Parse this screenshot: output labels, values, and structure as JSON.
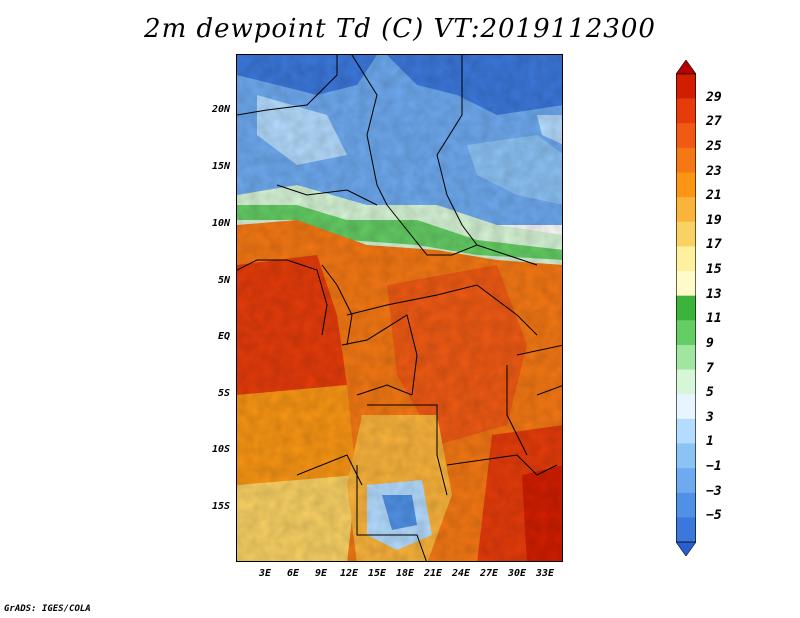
{
  "title": "2m dewpoint Td (C) VT:2019112300",
  "footer": "GrADS: IGES/COLA",
  "lat_labels": [
    "20N",
    "15N",
    "10N",
    "5N",
    "EQ",
    "5S",
    "10S",
    "15S"
  ],
  "lon_labels": [
    "3E",
    "6E",
    "9E",
    "12E",
    "15E",
    "18E",
    "21E",
    "24E",
    "27E",
    "30E",
    "33E"
  ],
  "colorbar": {
    "labels": [
      "29",
      "27",
      "25",
      "23",
      "21",
      "19",
      "17",
      "15",
      "13",
      "11",
      "9",
      "7",
      "5",
      "3",
      "1",
      "−1",
      "−3",
      "−5"
    ],
    "colors": [
      "#b40000",
      "#d21e00",
      "#e63c0a",
      "#f05a14",
      "#f57814",
      "#fa9614",
      "#fab43c",
      "#fad264",
      "#fff0a0",
      "#fffac8",
      "#3cb43c",
      "#64cd64",
      "#a0e6a0",
      "#d7f5d7",
      "#e6f5ff",
      "#b4dcff",
      "#8cc3f5",
      "#6eaaf0",
      "#5091e6",
      "#3c78dc",
      "#2860d2"
    ]
  },
  "region": {
    "lon_range": [
      0,
      35
    ],
    "lat_range": [
      -19,
      25
    ]
  }
}
